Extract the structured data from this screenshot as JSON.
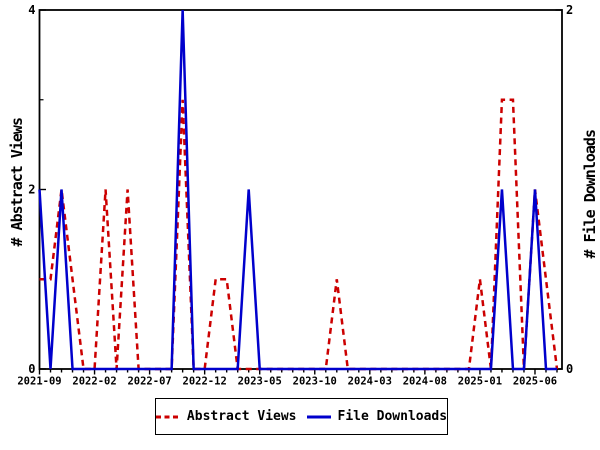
{
  "figure": {
    "background": "#ffffff",
    "frame_color": "#000000"
  },
  "y_axis_left": {
    "title": "# Abstract Views",
    "min": 0,
    "max": 4,
    "tick_labels": [
      {
        "value": 4,
        "label": "4"
      },
      {
        "value": 2,
        "label": "2"
      },
      {
        "value": 0,
        "label": "0"
      }
    ],
    "minor_tick_values": [
      1,
      3
    ]
  },
  "y_axis_right": {
    "title": "# File Downloads",
    "min": 0,
    "max": 2,
    "tick_labels": [
      {
        "value": 2,
        "label": "2"
      },
      {
        "value": 0,
        "label": "0"
      }
    ]
  },
  "x_axis": {
    "labeled_ticks": [
      "2021-09",
      "2022-02",
      "2022-07",
      "2022-12",
      "2023-05",
      "2023-10",
      "2024-03",
      "2024-08",
      "2025-01",
      "2025-06"
    ],
    "label_every_n_months": 5
  },
  "legend": {
    "items": [
      {
        "label": "Abstract Views",
        "style": "dashed",
        "color": "#cc0000"
      },
      {
        "label": "File Downloads",
        "style": "solid",
        "color": "#0000cc"
      }
    ]
  },
  "chart_data": {
    "type": "line",
    "title": "",
    "xlabel": "",
    "ylabel_left": "# Abstract Views",
    "ylabel_right": "# File Downloads",
    "ylim_left": [
      0,
      4
    ],
    "ylim_right": [
      0,
      2
    ],
    "grid": false,
    "legend_position": "bottom-center",
    "x": [
      "2021-09",
      "2021-10",
      "2021-11",
      "2021-12",
      "2022-01",
      "2022-02",
      "2022-03",
      "2022-04",
      "2022-05",
      "2022-06",
      "2022-07",
      "2022-08",
      "2022-09",
      "2022-10",
      "2022-11",
      "2022-12",
      "2023-01",
      "2023-02",
      "2023-03",
      "2023-04",
      "2023-05",
      "2023-06",
      "2023-07",
      "2023-08",
      "2023-09",
      "2023-10",
      "2023-11",
      "2023-12",
      "2024-01",
      "2024-02",
      "2024-03",
      "2024-04",
      "2024-05",
      "2024-06",
      "2024-07",
      "2024-08",
      "2024-09",
      "2024-10",
      "2024-11",
      "2024-12",
      "2025-01",
      "2025-02",
      "2025-03",
      "2025-04",
      "2025-05",
      "2025-06",
      "2025-07",
      "2025-08"
    ],
    "series": [
      {
        "name": "Abstract Views",
        "axis": "left",
        "color": "#cc0000",
        "line_style": "dashed",
        "values": [
          1,
          1,
          2,
          1,
          0,
          0,
          2,
          0,
          2,
          0,
          0,
          0,
          0,
          3,
          0,
          0,
          1,
          1,
          0,
          0,
          0,
          0,
          0,
          0,
          0,
          0,
          0,
          1,
          0,
          0,
          0,
          0,
          0,
          0,
          0,
          0,
          0,
          0,
          0,
          0,
          1,
          0,
          3,
          3,
          0,
          2,
          1,
          0
        ]
      },
      {
        "name": "File Downloads",
        "axis": "right",
        "color": "#0000cc",
        "line_style": "solid",
        "values": [
          1,
          0,
          1,
          0,
          0,
          0,
          0,
          0,
          0,
          0,
          0,
          0,
          0,
          2,
          0,
          0,
          0,
          0,
          0,
          1,
          0,
          0,
          0,
          0,
          0,
          0,
          0,
          0,
          0,
          0,
          0,
          0,
          0,
          0,
          0,
          0,
          0,
          0,
          0,
          0,
          0,
          0,
          1,
          0,
          0,
          1,
          0,
          0
        ]
      }
    ]
  }
}
